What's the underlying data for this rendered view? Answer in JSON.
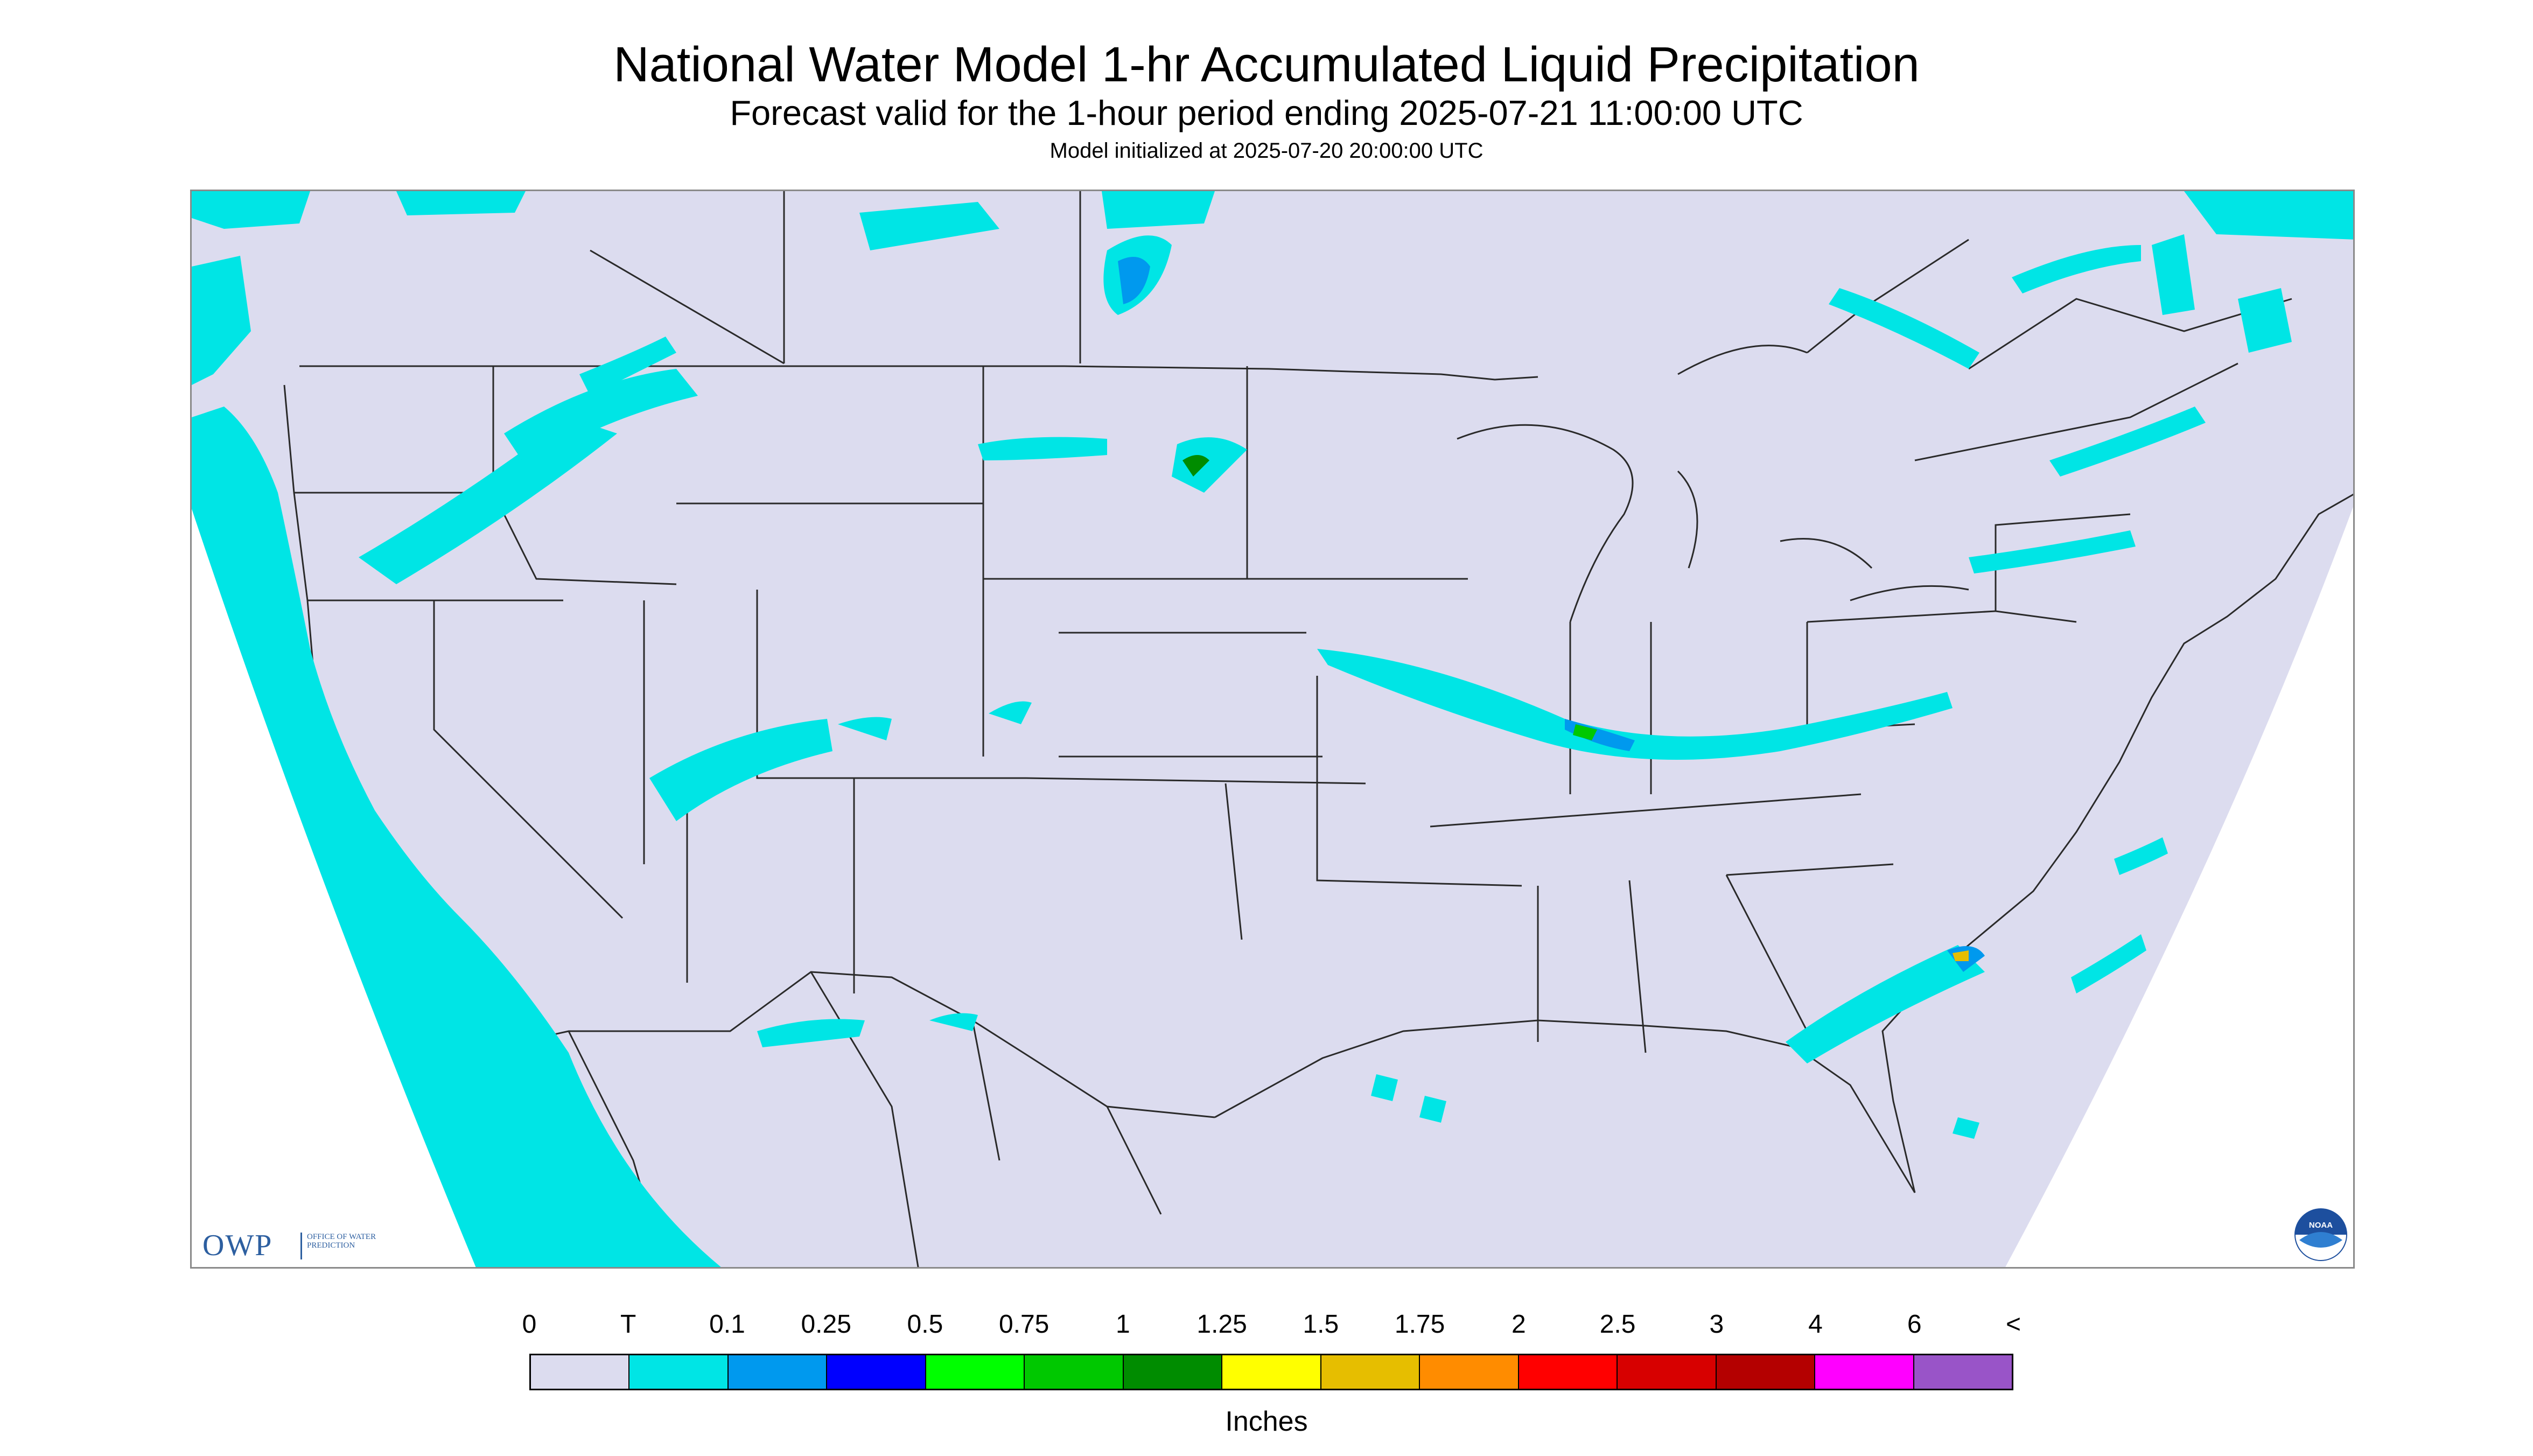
{
  "title": "National Water Model 1-hr Accumulated Liquid Precipitation",
  "subtitle": "Forecast valid for the 1-hour period ending 2025-07-21 11:00:00 UTC",
  "init_text": "Model initialized at 2025-07-20 20:00:00 UTC",
  "logos": {
    "owp_letters": "OWP",
    "owp_sub": "OFFICE OF WATER PREDICTION",
    "noaa": "NOAA"
  },
  "colors": {
    "no_data": "#ffffff",
    "zero": "#dcdcef",
    "border_lines": "#2a2a2a",
    "frame": "#8a8a8a",
    "owp_blue": "#2d5fa0",
    "noaa_blue": "#1d4f9e"
  },
  "legend": {
    "units": "Inches",
    "labels": [
      "0",
      "T",
      "0.1",
      "0.25",
      "0.5",
      "0.75",
      "1",
      "1.25",
      "1.5",
      "1.75",
      "2",
      "2.5",
      "3",
      "4",
      "6",
      "<"
    ],
    "colors": [
      "#dcdcef",
      "#00e5e5",
      "#0099ee",
      "#0000ff",
      "#00ff00",
      "#00c800",
      "#008c00",
      "#ffff00",
      "#e6be00",
      "#ff8c00",
      "#ff0000",
      "#d70000",
      "#b40000",
      "#ff00ff",
      "#9954c8"
    ]
  },
  "map": {
    "projection": "lambert-conformal",
    "precip_areas": [
      {
        "region": "pacific-coast-offshore",
        "category": "T"
      },
      {
        "region": "southern-canada-prairies",
        "category": "T"
      },
      {
        "region": "manitoba-north-dakota",
        "category": "0.1"
      },
      {
        "region": "pacific-northwest-montana",
        "category": "T"
      },
      {
        "region": "four-corners",
        "category": "T"
      },
      {
        "region": "ohio-valley",
        "category": "0.25"
      },
      {
        "region": "atlantic-offshore-southeast",
        "category": "0.1"
      },
      {
        "region": "gulf-of-mexico",
        "category": "T"
      },
      {
        "region": "quebec-maritimes",
        "category": "T"
      }
    ]
  }
}
